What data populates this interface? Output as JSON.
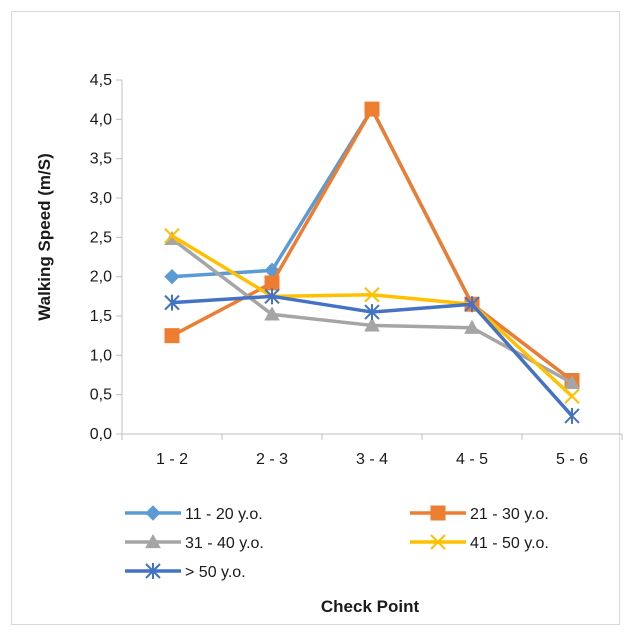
{
  "chart_data": {
    "type": "line",
    "title": "",
    "xlabel": "Check Point",
    "ylabel": "Walking Speed (m/S)",
    "categories": [
      "1 - 2",
      "2 - 3",
      "3 - 4",
      "4 - 5",
      "5 - 6"
    ],
    "ylim": [
      0,
      4.5
    ],
    "yticks": [
      "0,0",
      "0,5",
      "1,0",
      "1,5",
      "2,0",
      "2,5",
      "3,0",
      "3,5",
      "4,0",
      "4,5"
    ],
    "grid": false,
    "legend_position": "bottom",
    "series": [
      {
        "name": "11 - 20 y.o.",
        "values": [
          2.0,
          2.08,
          4.13,
          1.65,
          0.68
        ],
        "color": "#5B9BD5",
        "marker": "diamond"
      },
      {
        "name": "21 - 30 y.o.",
        "values": [
          1.25,
          1.92,
          4.13,
          1.65,
          0.68
        ],
        "color": "#ED7D31",
        "marker": "square"
      },
      {
        "name": "31 - 40 y.o.",
        "values": [
          2.48,
          1.52,
          1.38,
          1.35,
          0.65
        ],
        "color": "#A5A5A5",
        "marker": "triangle"
      },
      {
        "name": "41 - 50 y.o.",
        "values": [
          2.52,
          1.75,
          1.77,
          1.65,
          0.48
        ],
        "color": "#FFC000",
        "marker": "x"
      },
      {
        "name": "> 50 y.o.",
        "values": [
          1.67,
          1.75,
          1.55,
          1.65,
          0.23
        ],
        "color": "#4472C4",
        "marker": "star"
      }
    ]
  }
}
